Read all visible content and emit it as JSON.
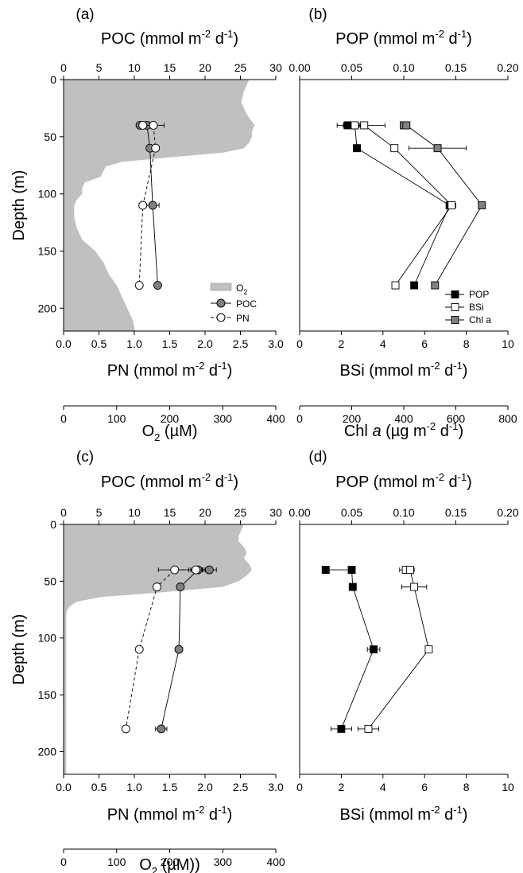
{
  "panels": [
    {
      "id": "a",
      "label": "(a)",
      "top_axis": {
        "title": "POC (mmol m",
        "sup": "-2",
        "tail": " d",
        "sup2": "-1",
        "end": ")",
        "ticks": [
          "0",
          "5",
          "10",
          "15",
          "20",
          "25",
          "30"
        ]
      },
      "bottom_axis": {
        "title": "PN (mmol m",
        "sup": "-2",
        "tail": " d",
        "sup2": "-1",
        "end": ")",
        "ticks": [
          "0.0",
          "0.5",
          "1.0",
          "1.5",
          "2.0",
          "2.5",
          "3.0"
        ]
      },
      "extra_axis": {
        "title": "O",
        "sub": "2",
        "tail": " (µM)",
        "ticks": [
          "0",
          "100",
          "200",
          "300",
          "400"
        ]
      },
      "y_axis": {
        "title": "Depth (m)",
        "ticks": [
          "0",
          "50",
          "100",
          "150",
          "200"
        ]
      },
      "legend": [
        "O2",
        "POC",
        "PN"
      ]
    },
    {
      "id": "b",
      "label": "(b)",
      "top_axis": {
        "title": "POP (mmol m",
        "sup": "-2",
        "tail": " d",
        "sup2": "-1",
        "end": ")",
        "ticks": [
          "0.00",
          "0.05",
          "0.10",
          "0.15",
          "0.20"
        ]
      },
      "bottom_axis": {
        "title": "BSi (mmol m",
        "sup": "-2",
        "tail": " d",
        "sup2": "-1",
        "end": ")",
        "ticks": [
          "0",
          "2",
          "4",
          "6",
          "8",
          "10"
        ]
      },
      "extra_axis": {
        "title": "Chl ",
        "italic": "a",
        "tail": " (µg m",
        "sup": "-2",
        "tail2": " d",
        "sup2": "-1",
        "end": ")",
        "ticks": [
          "0",
          "200",
          "400",
          "600",
          "800"
        ]
      },
      "legend": [
        "POP",
        "BSi",
        "Chl a"
      ]
    },
    {
      "id": "c",
      "label": "(c)",
      "top_axis": {
        "title": "POC (mmol m",
        "sup": "-2",
        "tail": " d",
        "sup2": "-1",
        "end": ")",
        "ticks": [
          "0",
          "5",
          "10",
          "15",
          "20",
          "25",
          "30"
        ]
      },
      "bottom_axis": {
        "title": "PN (mmol m",
        "sup": "-2",
        "tail": " d",
        "sup2": "-1",
        "end": ")",
        "ticks": [
          "0.0",
          "0.5",
          "1.0",
          "1.5",
          "2.0",
          "2.5",
          "3.0"
        ]
      },
      "extra_axis": {
        "title": "O",
        "sub": "2",
        "tail": " (µM))",
        "ticks": [
          "0",
          "100",
          "200",
          "300",
          "400"
        ]
      },
      "y_axis": {
        "title": "Depth (m)",
        "ticks": [
          "0",
          "50",
          "100",
          "150",
          "200"
        ]
      }
    },
    {
      "id": "d",
      "label": "(d)",
      "top_axis": {
        "title": "POP (mmol m",
        "sup": "-2",
        "tail": " d",
        "sup2": "-1",
        "end": ")",
        "ticks": [
          "0.00",
          "0.05",
          "0.10",
          "0.15",
          "0.20"
        ]
      },
      "bottom_axis": {
        "title": "BSi (mmol m",
        "sup": "-2",
        "tail": " d",
        "sup2": "-1",
        "end": ")",
        "ticks": [
          "0",
          "2",
          "4",
          "6",
          "8",
          "10"
        ]
      }
    }
  ],
  "colors": {
    "o2_fill": "#c0c0c0",
    "poc": "#808080",
    "chl": "#808080",
    "pop": "#000000",
    "open": "#ffffff",
    "line": "#000000"
  },
  "chart_data": [
    {
      "panel": "a",
      "type": "line",
      "y_range": [
        0,
        220
      ],
      "y_reversed": true,
      "o2_profile": {
        "x_range": [
          0,
          400
        ],
        "depth": [
          0,
          5,
          10,
          20,
          30,
          40,
          45,
          50,
          55,
          60,
          64,
          68,
          72,
          76,
          80,
          85,
          90,
          95,
          100,
          105,
          110,
          120,
          130,
          140,
          150,
          160,
          170,
          180,
          190,
          200,
          210,
          220
        ],
        "values": [
          350,
          345,
          340,
          335,
          345,
          360,
          355,
          355,
          350,
          340,
          300,
          200,
          110,
          80,
          75,
          70,
          40,
          35,
          35,
          25,
          20,
          20,
          25,
          35,
          60,
          75,
          85,
          100,
          110,
          120,
          130,
          135
        ]
      },
      "series": [
        {
          "name": "POC",
          "axis": "POC",
          "x_range": [
            0,
            30
          ],
          "depth": [
            40,
            40,
            60,
            110,
            180
          ],
          "values": [
            10.8,
            11.8,
            12.2,
            12.6,
            13.3
          ],
          "err": [
            0.3,
            0.3,
            0.3,
            0.9,
            0.2
          ]
        },
        {
          "name": "PN",
          "axis": "PN",
          "x_range": [
            0,
            3
          ],
          "depth": [
            40,
            40,
            60,
            110,
            180
          ],
          "values": [
            1.12,
            1.27,
            1.3,
            1.12,
            1.07
          ],
          "err": [
            0.05,
            0.15,
            0.05,
            0.05,
            0
          ]
        }
      ]
    },
    {
      "panel": "b",
      "type": "line",
      "y_range": [
        0,
        220
      ],
      "y_reversed": true,
      "series": [
        {
          "name": "POP",
          "axis": "POP",
          "x_range": [
            0,
            0.2
          ],
          "depth": [
            40,
            40,
            60,
            110,
            180
          ],
          "values": [
            0.046,
            0.053,
            0.055,
            0.144,
            0.11
          ],
          "err": [
            0.01,
            0.005,
            0,
            0.003,
            0
          ]
        },
        {
          "name": "BSi",
          "axis": "BSi",
          "x_range": [
            0,
            10
          ],
          "depth": [
            40,
            40,
            60,
            110,
            180
          ],
          "values": [
            2.65,
            3.1,
            4.55,
            7.3,
            4.6
          ],
          "err": [
            0.2,
            1.0,
            0,
            0.2,
            0
          ]
        },
        {
          "name": "Chl a",
          "axis": "Chl a",
          "x_range": [
            0,
            800
          ],
          "depth": [
            40,
            40,
            60,
            110,
            180
          ],
          "values": [
            400,
            410,
            530,
            700,
            520
          ],
          "err": [
            10,
            10,
            110,
            0,
            0
          ]
        }
      ]
    },
    {
      "panel": "c",
      "type": "line",
      "y_range": [
        0,
        220
      ],
      "y_reversed": true,
      "o2_profile": {
        "x_range": [
          0,
          400
        ],
        "depth": [
          0,
          5,
          10,
          15,
          20,
          25,
          30,
          35,
          40,
          45,
          50,
          55,
          60,
          64,
          68,
          72,
          76,
          80,
          100,
          150,
          200,
          220
        ],
        "values": [
          340,
          335,
          330,
          330,
          340,
          345,
          340,
          350,
          355,
          345,
          330,
          300,
          180,
          70,
          25,
          12,
          6,
          5,
          5,
          5,
          5,
          5
        ]
      },
      "series": [
        {
          "name": "POC",
          "axis": "POC",
          "x_range": [
            0,
            30
          ],
          "depth": [
            40,
            40,
            55,
            110,
            180
          ],
          "values": [
            20.6,
            19.0,
            16.5,
            16.3,
            13.8
          ],
          "err": [
            1.0,
            1.0,
            0,
            0.5,
            0.8
          ]
        },
        {
          "name": "PN",
          "axis": "PN",
          "x_range": [
            0,
            3
          ],
          "depth": [
            40,
            40,
            55,
            110,
            180
          ],
          "values": [
            1.87,
            1.57,
            1.32,
            1.07,
            0.88
          ],
          "err": [
            0.1,
            0.23,
            0,
            0,
            0
          ]
        }
      ]
    },
    {
      "panel": "d",
      "type": "line",
      "y_range": [
        0,
        220
      ],
      "y_reversed": true,
      "series": [
        {
          "name": "POP",
          "axis": "POP",
          "x_range": [
            0,
            0.2
          ],
          "depth": [
            40,
            40,
            55,
            110,
            180
          ],
          "values": [
            0.025,
            0.05,
            0.051,
            0.071,
            0.04
          ],
          "err": [
            0.003,
            0.002,
            0,
            0.006,
            0.01
          ]
        },
        {
          "name": "BSi",
          "axis": "BSi",
          "x_range": [
            0,
            10
          ],
          "depth": [
            40,
            40,
            55,
            110,
            180
          ],
          "values": [
            5.1,
            5.3,
            5.5,
            6.2,
            3.3
          ],
          "err": [
            0.3,
            0.2,
            0.6,
            0,
            0.5
          ]
        }
      ]
    }
  ]
}
